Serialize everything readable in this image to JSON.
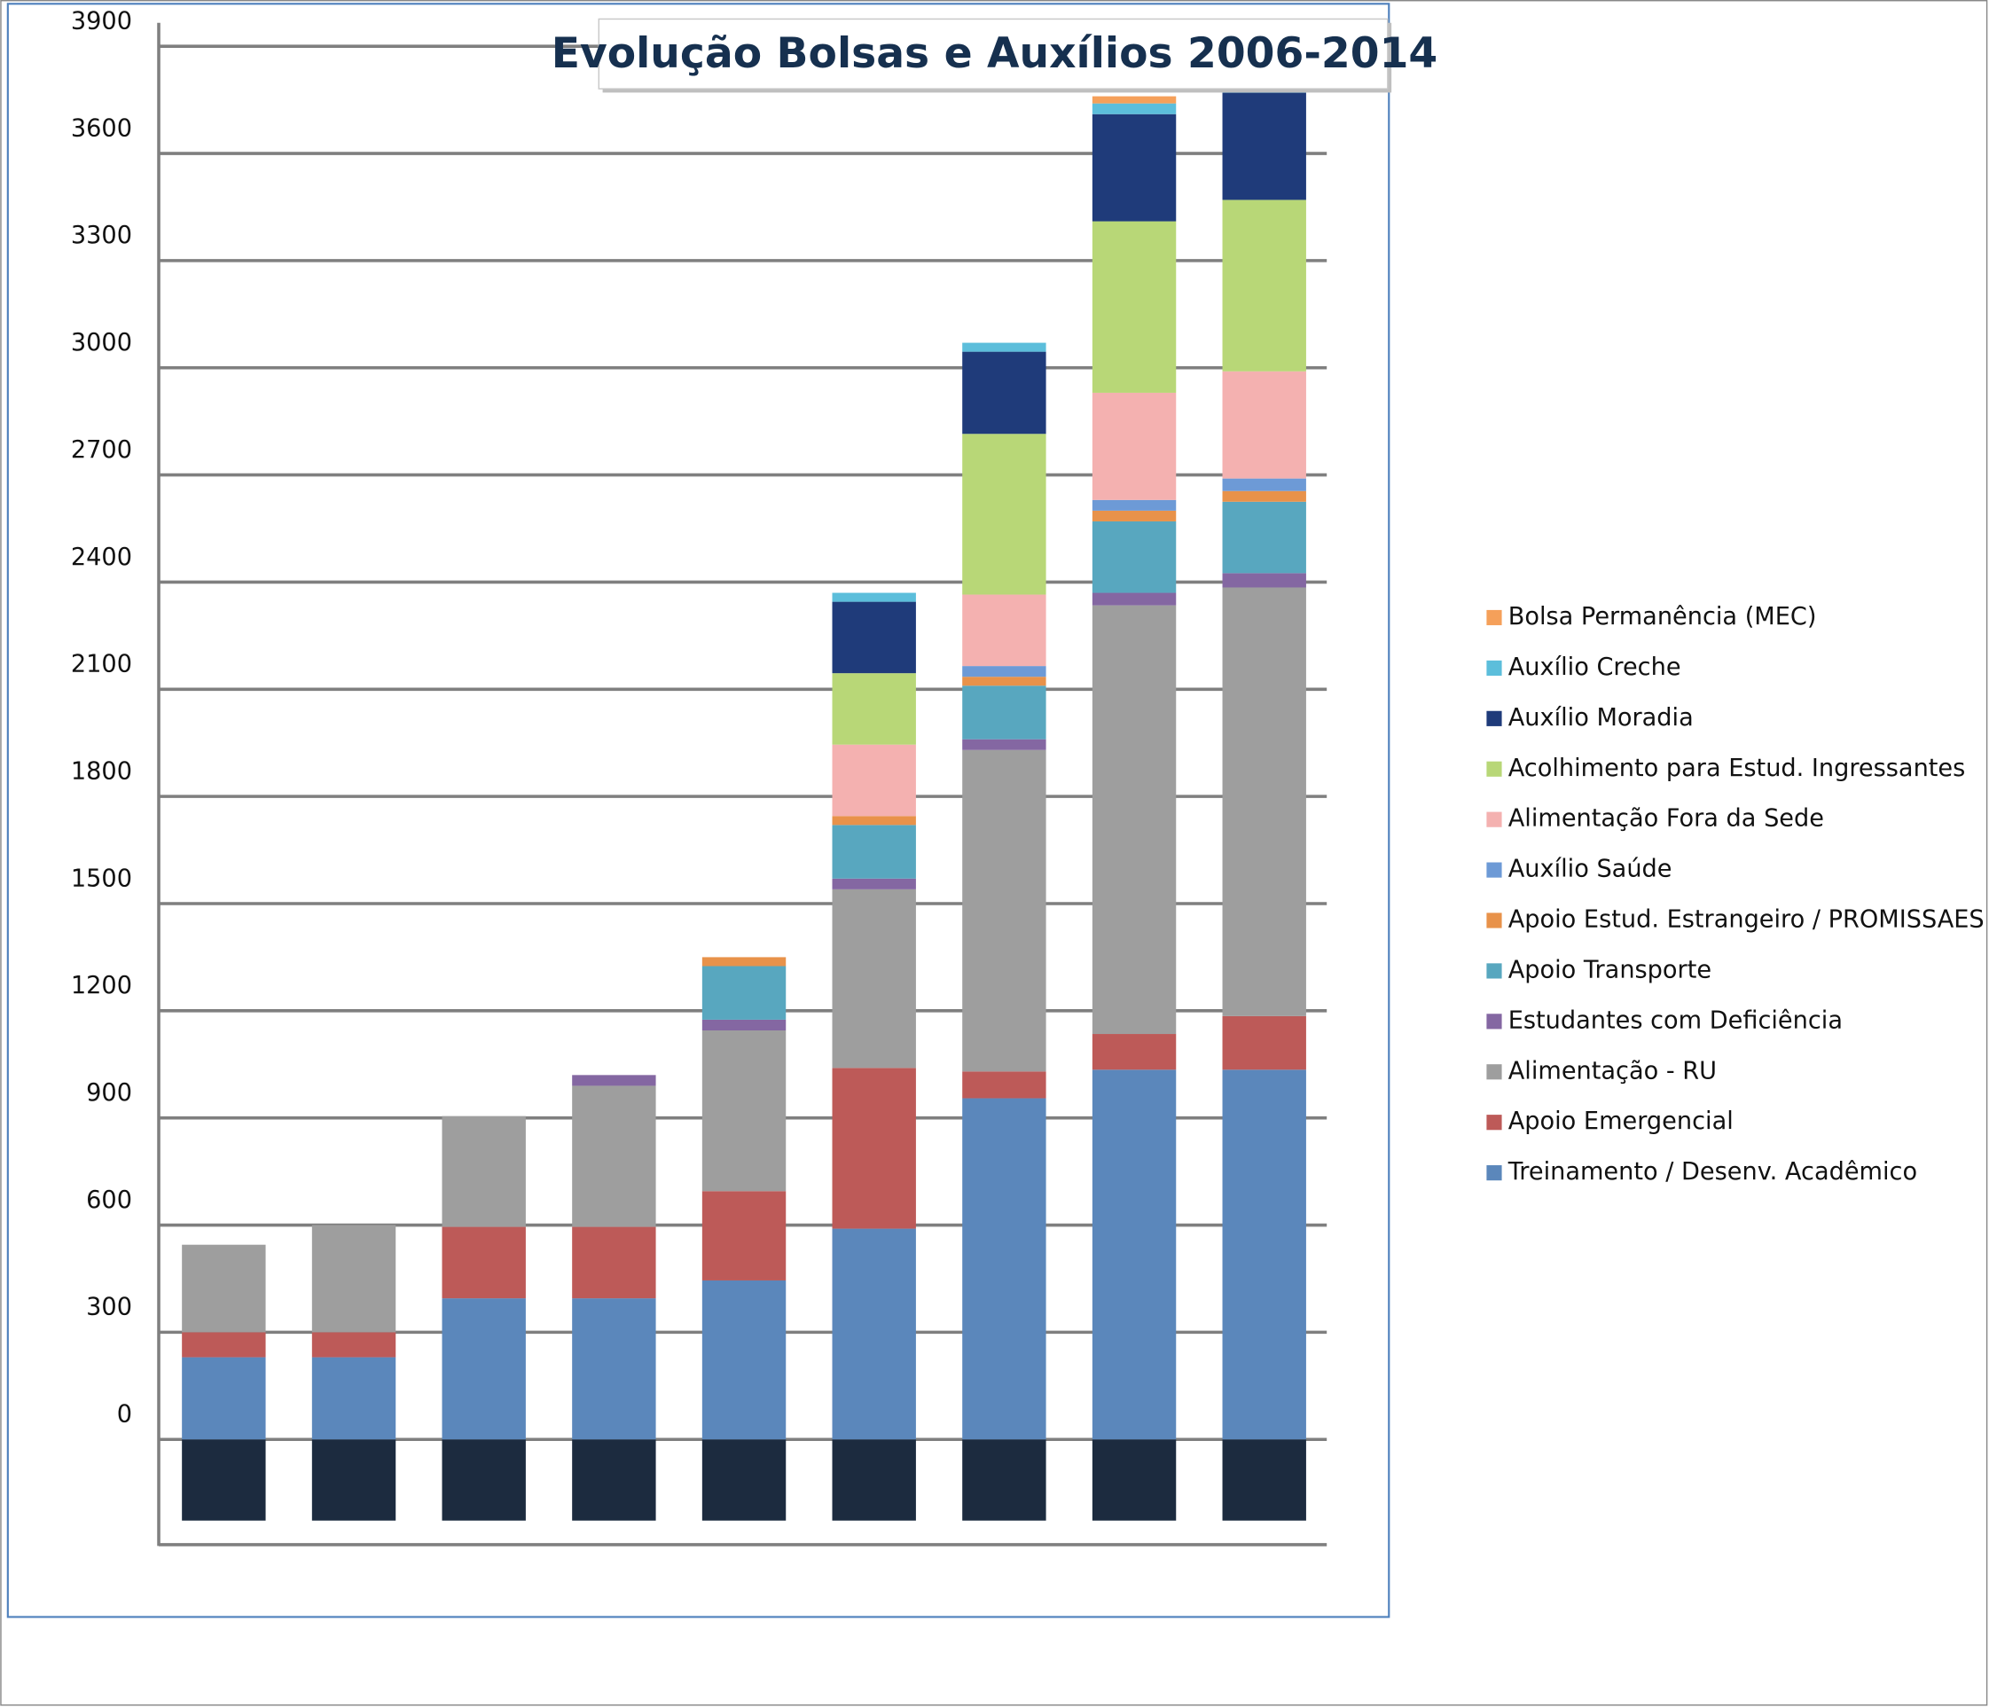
{
  "chart_data": {
    "type": "stacked_bar",
    "title": "Evolução Bolsas e Auxílios 2006-2014",
    "categories": [
      null,
      null,
      null,
      null,
      null,
      null,
      null,
      null,
      null
    ],
    "ylim": [
      -300,
      3900
    ],
    "yticks": [
      0,
      300,
      600,
      900,
      1200,
      1500,
      1800,
      2100,
      2400,
      2700,
      3000,
      3300,
      3600,
      3900
    ],
    "grid": true,
    "legend": "right",
    "series": [
      {
        "name": "Treinamento / Desenv. Acadêmico",
        "color": "#5b87bb",
        "values": [
          230,
          230,
          395,
          395,
          445,
          590,
          955,
          1035,
          1035
        ]
      },
      {
        "name": "Apoio Emergencial",
        "color": "#bd5a58",
        "values": [
          70,
          70,
          200,
          200,
          250,
          450,
          75,
          100,
          150
        ]
      },
      {
        "name": "Alimentação - RU",
        "color": "#9e9e9e",
        "values": [
          245,
          300,
          310,
          395,
          450,
          500,
          900,
          1200,
          1200
        ]
      },
      {
        "name": "Estudantes com Deficiência",
        "color": "#8467a2",
        "values": [
          null,
          null,
          null,
          30,
          30,
          30,
          30,
          35,
          40
        ]
      },
      {
        "name": "Apoio Transporte",
        "color": "#58a7bf",
        "values": [
          null,
          null,
          null,
          null,
          150,
          150,
          150,
          200,
          200
        ]
      },
      {
        "name": "Apoio Estud. Estrangeiro / PROMISSAES",
        "color": "#e8924a",
        "values": [
          null,
          null,
          null,
          null,
          25,
          25,
          25,
          30,
          30
        ]
      },
      {
        "name": "Auxílio Saúde",
        "color": "#6d9ad6",
        "values": [
          null,
          null,
          null,
          null,
          null,
          null,
          30,
          30,
          35
        ]
      },
      {
        "name": "Alimentação Fora da Sede",
        "color": "#f4b1b0",
        "values": [
          null,
          null,
          null,
          null,
          null,
          200,
          200,
          300,
          300
        ]
      },
      {
        "name": "Acolhimento para Estud. Ingressantes",
        "color": "#b8d777",
        "values": [
          null,
          null,
          null,
          null,
          null,
          200,
          450,
          480,
          480
        ]
      },
      {
        "name": "Auxílio Moradia",
        "color": "#1f3b7a",
        "values": [
          null,
          null,
          null,
          null,
          null,
          200,
          230,
          300,
          300
        ]
      },
      {
        "name": "Auxílio Creche",
        "color": "#5cbedb",
        "values": [
          null,
          null,
          null,
          null,
          null,
          25,
          25,
          30,
          10
        ]
      },
      {
        "name": "Bolsa Permanência (MEC)",
        "color": "#f5a05a",
        "values": [
          null,
          null,
          null,
          null,
          null,
          null,
          null,
          20,
          null
        ]
      }
    ]
  }
}
